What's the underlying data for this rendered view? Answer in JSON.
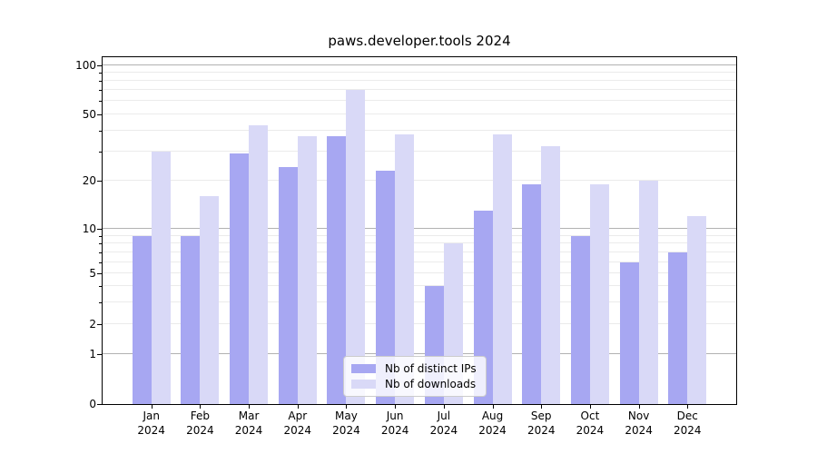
{
  "title": "paws.developer.tools 2024",
  "colors": {
    "bar_distinct_ips": "#a7a7f2",
    "bar_downloads": "#d9d9f7",
    "grid_major": "#b2b2b2",
    "grid_minor": "#ebebeb",
    "axis": "#000000",
    "legend_border": "#cccccc"
  },
  "chart_data": {
    "type": "bar",
    "title": "paws.developer.tools 2024",
    "months": [
      "Jan",
      "Feb",
      "Mar",
      "Apr",
      "May",
      "Jun",
      "Jul",
      "Aug",
      "Sep",
      "Oct",
      "Nov",
      "Dec"
    ],
    "year_label": "2024",
    "categories": [
      "Jan 2024",
      "Feb 2024",
      "Mar 2024",
      "Apr 2024",
      "May 2024",
      "Jun 2024",
      "Jul 2024",
      "Aug 2024",
      "Sep 2024",
      "Oct 2024",
      "Nov 2024",
      "Dec 2024"
    ],
    "series": [
      {
        "name": "Nb of distinct IPs",
        "color": "#a7a7f2",
        "values": [
          9,
          9,
          29,
          24,
          37,
          23,
          4,
          13,
          19,
          9,
          6,
          7
        ]
      },
      {
        "name": "Nb of downloads",
        "color": "#d9d9f7",
        "values": [
          30,
          16,
          43,
          37,
          70,
          38,
          8,
          38,
          32,
          19,
          20,
          12
        ]
      }
    ],
    "xlabel": "",
    "ylabel": "",
    "yscale": "asinh-log",
    "ylim": [
      0,
      112
    ],
    "y_ticks": [
      0,
      1,
      2,
      5,
      10,
      20,
      50,
      100
    ],
    "y_gridlines_major": [
      1,
      10,
      100
    ],
    "y_gridlines_minor": [
      2,
      3,
      4,
      5,
      6,
      7,
      8,
      9,
      20,
      30,
      40,
      50,
      60,
      70,
      80,
      90
    ],
    "grid": true,
    "legend_position": "lower center",
    "tick_fractions": [
      [
        0,
        0
      ],
      [
        1,
        0.1443
      ],
      [
        2,
        0.2297
      ],
      [
        5,
        0.3759
      ],
      [
        10,
        0.5043
      ],
      [
        20,
        0.6441
      ],
      [
        50,
        0.836
      ],
      [
        100,
        0.9772
      ]
    ]
  }
}
